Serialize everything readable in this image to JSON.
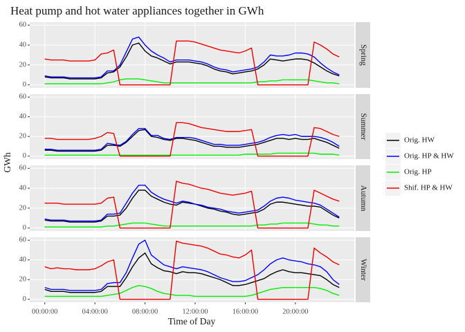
{
  "chart_data": {
    "type": "line",
    "title": "Heat pump and hot water appliances together in GWh",
    "xlabel": "Time of Day",
    "ylabel": "GWh",
    "facets": [
      "Spring",
      "Summer",
      "Autumn",
      "Winter"
    ],
    "x": [
      0,
      0.5,
      1,
      1.5,
      2,
      2.5,
      3,
      3.5,
      4,
      4.5,
      5,
      5.5,
      6,
      6.5,
      7,
      7.5,
      8,
      8.5,
      9,
      9.5,
      10,
      10.5,
      11,
      11.5,
      12,
      12.5,
      13,
      13.5,
      14,
      14.5,
      15,
      15.5,
      16,
      16.5,
      17,
      17.5,
      18,
      18.5,
      19,
      19.5,
      20,
      20.5,
      21,
      21.5,
      22,
      22.5,
      23,
      23.5
    ],
    "xlim": [
      -1.2,
      24.7
    ],
    "xticks": [
      {
        "value": 0,
        "label": "00:00:00"
      },
      {
        "value": 4,
        "label": "04:00:00"
      },
      {
        "value": 8,
        "label": "08:00:00"
      },
      {
        "value": 12,
        "label": "12:00:00"
      },
      {
        "value": 16,
        "label": "16:00:00"
      },
      {
        "value": 20,
        "label": "20:00:00"
      }
    ],
    "ylim": [
      -3,
      63
    ],
    "yticks": [
      0,
      20,
      40,
      60
    ],
    "grid": true,
    "legend": "right",
    "series": [
      {
        "name": "Orig. HW",
        "color": "#000000",
        "values": [
          [
            8,
            7,
            7,
            7,
            6,
            6,
            6,
            6,
            6,
            7,
            12,
            13,
            18,
            28,
            40,
            42,
            34,
            29,
            27,
            24,
            21,
            23,
            23,
            23,
            22,
            21,
            19,
            16,
            14,
            13,
            11,
            12,
            13,
            14,
            16,
            20,
            26,
            25,
            24,
            25,
            26,
            26,
            25,
            22,
            18,
            14,
            11,
            9
          ],
          [
            6,
            6,
            5,
            5,
            5,
            5,
            5,
            5,
            5,
            6,
            11,
            11,
            10,
            14,
            20,
            26,
            27,
            20,
            19,
            17,
            16,
            18,
            18,
            17,
            16,
            14,
            12,
            10,
            10,
            9,
            9,
            9,
            10,
            11,
            12,
            14,
            16,
            18,
            18,
            17,
            18,
            17,
            17,
            18,
            16,
            14,
            11,
            8
          ],
          [
            8,
            7,
            7,
            7,
            6,
            6,
            6,
            6,
            6,
            7,
            12,
            12,
            13,
            20,
            30,
            38,
            38,
            32,
            29,
            26,
            24,
            23,
            26,
            25,
            24,
            22,
            20,
            19,
            17,
            16,
            14,
            13,
            14,
            15,
            16,
            19,
            24,
            26,
            26,
            25,
            24,
            23,
            22,
            22,
            21,
            17,
            13,
            10
          ],
          [
            10,
            8,
            8,
            8,
            7,
            7,
            7,
            7,
            7,
            8,
            13,
            13,
            13,
            22,
            33,
            42,
            47,
            36,
            32,
            29,
            28,
            26,
            28,
            27,
            27,
            26,
            24,
            22,
            20,
            17,
            14,
            14,
            15,
            17,
            19,
            21,
            25,
            28,
            30,
            28,
            27,
            27,
            26,
            25,
            24,
            20,
            15,
            12
          ]
        ]
      },
      {
        "name": "Orig. HP & HW",
        "color": "#0000ff",
        "values": [
          [
            9,
            8,
            8,
            8,
            7,
            7,
            7,
            7,
            7,
            8,
            14,
            14,
            20,
            33,
            46,
            48,
            40,
            34,
            30,
            27,
            23,
            25,
            25,
            25,
            24,
            23,
            21,
            18,
            16,
            15,
            13,
            14,
            15,
            16,
            18,
            23,
            30,
            29,
            29,
            30,
            32,
            32,
            31,
            28,
            22,
            17,
            13,
            10
          ],
          [
            7,
            7,
            6,
            6,
            6,
            6,
            6,
            6,
            6,
            7,
            13,
            12,
            11,
            15,
            22,
            28,
            28,
            21,
            21,
            18,
            17,
            19,
            19,
            19,
            18,
            16,
            14,
            12,
            12,
            11,
            11,
            11,
            12,
            13,
            14,
            16,
            19,
            21,
            22,
            21,
            22,
            20,
            20,
            20,
            19,
            17,
            14,
            10
          ],
          [
            9,
            8,
            8,
            8,
            7,
            7,
            7,
            7,
            7,
            8,
            14,
            14,
            15,
            25,
            35,
            43,
            43,
            36,
            32,
            29,
            27,
            25,
            27,
            26,
            24,
            23,
            21,
            20,
            19,
            17,
            16,
            15,
            16,
            17,
            18,
            22,
            27,
            30,
            31,
            30,
            28,
            27,
            26,
            25,
            23,
            19,
            15,
            11
          ],
          [
            12,
            10,
            10,
            10,
            9,
            9,
            9,
            9,
            9,
            10,
            16,
            17,
            17,
            27,
            42,
            56,
            60,
            45,
            40,
            35,
            33,
            31,
            33,
            32,
            31,
            30,
            28,
            25,
            22,
            20,
            18,
            18,
            19,
            22,
            25,
            30,
            36,
            40,
            42,
            40,
            39,
            38,
            36,
            35,
            33,
            28,
            20,
            15
          ]
        ]
      },
      {
        "name": "Orig. HP",
        "color": "#00ee00",
        "values": [
          [
            1,
            1,
            1,
            1,
            1,
            1,
            1,
            1,
            1,
            1,
            2,
            3,
            5,
            6,
            6,
            6,
            5,
            4,
            3,
            2,
            2,
            2,
            2,
            2,
            2,
            2,
            2,
            2,
            2,
            2,
            2,
            2,
            2,
            2,
            3,
            3,
            4,
            4,
            5,
            5,
            5,
            5,
            5,
            4,
            3,
            2,
            2,
            1
          ],
          [
            1,
            1,
            1,
            1,
            1,
            1,
            1,
            1,
            1,
            1,
            1,
            1,
            1,
            1,
            1,
            1,
            1,
            1,
            1,
            1,
            1,
            1,
            1,
            1,
            1,
            1,
            1,
            1,
            1,
            1,
            1,
            1,
            2,
            2,
            2,
            2,
            2,
            3,
            3,
            3,
            3,
            3,
            3,
            3,
            2,
            2,
            2,
            1
          ],
          [
            1,
            1,
            1,
            1,
            1,
            1,
            1,
            1,
            1,
            1,
            2,
            2,
            3,
            4,
            5,
            5,
            5,
            4,
            3,
            2,
            2,
            2,
            2,
            2,
            2,
            2,
            2,
            2,
            2,
            2,
            2,
            2,
            2,
            2,
            3,
            3,
            4,
            4,
            5,
            5,
            5,
            5,
            5,
            4,
            3,
            3,
            2,
            2
          ],
          [
            3,
            3,
            3,
            3,
            3,
            3,
            3,
            3,
            3,
            3,
            4,
            5,
            6,
            9,
            12,
            14,
            13,
            11,
            8,
            6,
            5,
            4,
            4,
            4,
            3,
            3,
            3,
            3,
            3,
            3,
            3,
            3,
            3,
            4,
            6,
            8,
            10,
            11,
            12,
            12,
            12,
            12,
            12,
            12,
            11,
            9,
            6,
            4
          ]
        ]
      },
      {
        "name": "Shif. HP & HW",
        "color": "#ee0000",
        "values": [
          [
            26,
            25,
            25,
            25,
            24,
            24,
            24,
            24,
            25,
            31,
            32,
            35,
            0,
            0,
            0,
            0,
            0,
            0,
            0,
            0,
            0,
            44,
            44,
            44,
            43,
            41,
            39,
            37,
            35,
            34,
            33,
            32,
            34,
            37,
            0,
            0,
            0,
            0,
            0,
            0,
            0,
            0,
            0,
            43,
            40,
            36,
            31,
            28
          ],
          [
            18,
            18,
            17,
            17,
            17,
            17,
            17,
            17,
            18,
            20,
            24,
            23,
            0,
            0,
            0,
            0,
            0,
            0,
            0,
            0,
            0,
            34,
            34,
            33,
            31,
            29,
            28,
            27,
            26,
            25,
            25,
            25,
            26,
            27,
            0,
            0,
            0,
            0,
            0,
            0,
            0,
            0,
            0,
            29,
            28,
            25,
            22,
            20
          ],
          [
            25,
            25,
            25,
            24,
            24,
            24,
            24,
            24,
            24,
            25,
            30,
            31,
            0,
            0,
            0,
            0,
            0,
            0,
            0,
            0,
            0,
            47,
            45,
            44,
            42,
            40,
            39,
            37,
            35,
            34,
            33,
            34,
            35,
            37,
            0,
            0,
            0,
            0,
            0,
            0,
            0,
            0,
            0,
            38,
            35,
            32,
            29,
            27
          ],
          [
            33,
            31,
            32,
            31,
            31,
            30,
            30,
            30,
            31,
            34,
            38,
            40,
            0,
            0,
            0,
            0,
            0,
            0,
            0,
            0,
            0,
            59,
            57,
            56,
            55,
            54,
            52,
            49,
            46,
            45,
            43,
            42,
            45,
            50,
            0,
            0,
            0,
            0,
            0,
            0,
            0,
            0,
            0,
            52,
            47,
            43,
            38,
            35
          ]
        ]
      }
    ]
  }
}
